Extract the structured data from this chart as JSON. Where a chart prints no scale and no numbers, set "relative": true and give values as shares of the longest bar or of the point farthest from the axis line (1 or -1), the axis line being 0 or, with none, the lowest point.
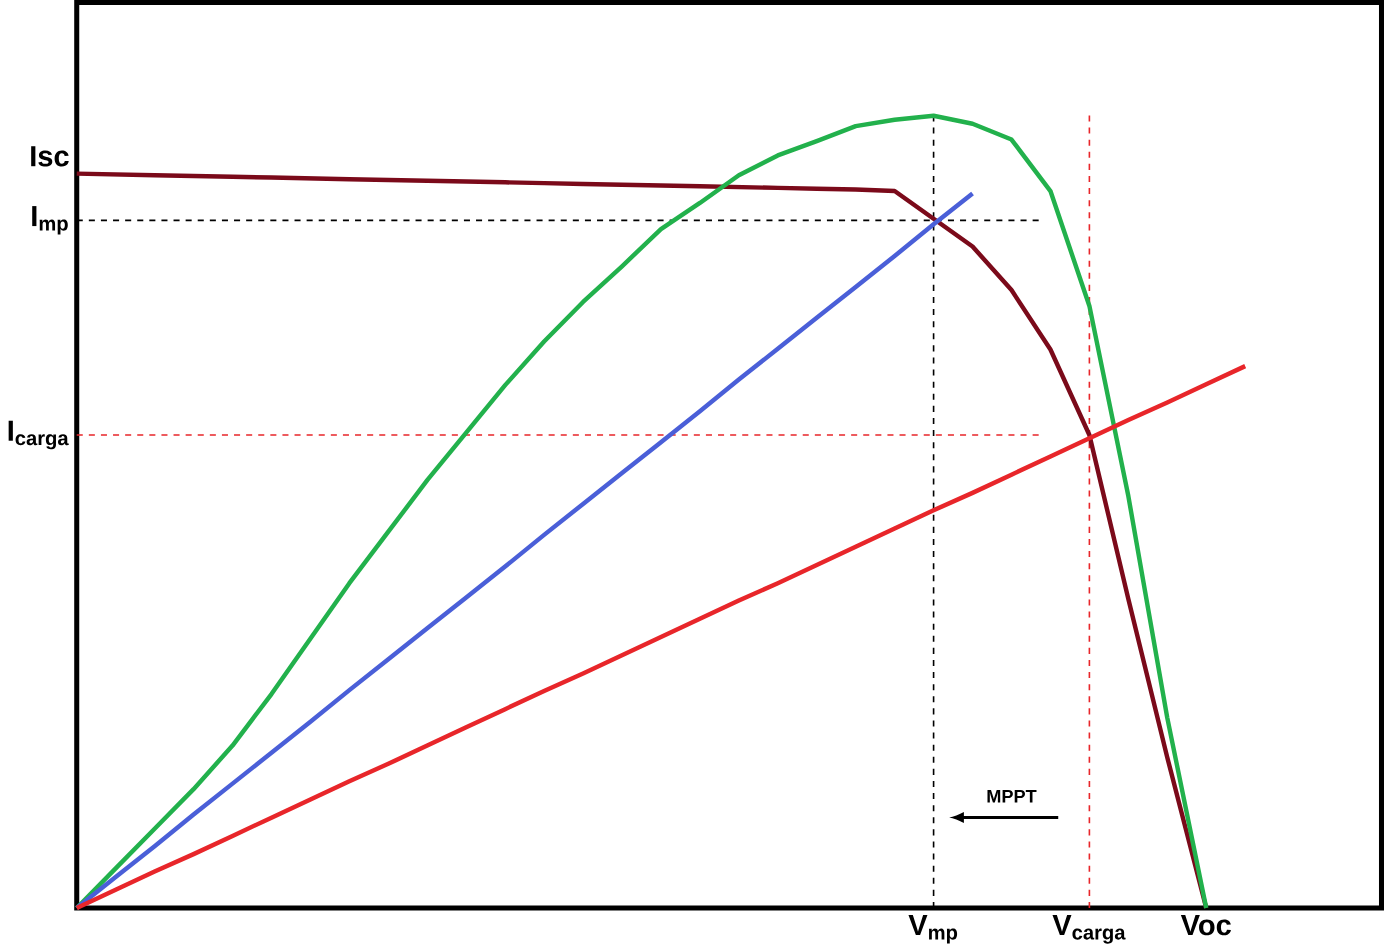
{
  "chart_data": {
    "type": "line",
    "relative": true,
    "marker": "none",
    "line_style": "solid",
    "categories": [
      null,
      null,
      null,
      null,
      null,
      null,
      null,
      null,
      null,
      null,
      null,
      null,
      null,
      null,
      null,
      null,
      null,
      null,
      null,
      null,
      null,
      null,
      "V$_{mp}$",
      null,
      null,
      null,
      "V$_{carga}$",
      null,
      null,
      "Voc",
      null
    ],
    "series": [
      {
        "color": "#7b0a1a",
        "values": [
          0.927,
          0.926,
          0.925,
          0.924,
          0.923,
          0.922,
          0.921,
          0.92,
          0.919,
          0.918,
          0.917,
          0.916,
          0.915,
          0.914,
          0.913,
          0.912,
          0.911,
          0.91,
          0.909,
          0.908,
          0.907,
          0.905,
          0.87,
          0.835,
          0.78,
          0.705,
          0.597,
          0.39,
          0.19,
          0,
          null
        ]
      },
      {
        "color": "#22b14c",
        "values": [
          0,
          0.05,
          0.1,
          0.15,
          0.205,
          0.27,
          0.34,
          0.41,
          0.475,
          0.54,
          0.6,
          0.66,
          0.715,
          0.765,
          0.81,
          0.857,
          0.89,
          0.925,
          0.95,
          0.968,
          0.987,
          0.995,
          1,
          0.99,
          0.97,
          0.905,
          0.76,
          0.52,
          0.24,
          0,
          null
        ]
      },
      {
        "color": "#4a5fd8",
        "values": [
          0,
          0.039,
          0.078,
          0.118,
          0.157,
          0.196,
          0.235,
          0.275,
          0.314,
          0.353,
          0.392,
          0.431,
          0.471,
          0.51,
          0.549,
          0.588,
          0.627,
          0.667,
          0.706,
          0.745,
          0.784,
          0.823,
          0.863,
          0.902,
          null,
          null,
          null,
          null,
          null,
          null,
          null
        ]
      },
      {
        "color": "#e8262a",
        "values": [
          0,
          0.023,
          0.046,
          0.068,
          0.091,
          0.114,
          0.137,
          0.16,
          0.182,
          0.205,
          0.228,
          0.251,
          0.274,
          0.296,
          0.319,
          0.342,
          0.365,
          0.388,
          0.41,
          0.433,
          0.456,
          0.479,
          0.502,
          0.524,
          0.547,
          0.57,
          0.593,
          0.616,
          0.638,
          0.661,
          0.684
        ]
      }
    ],
    "ref_lines": [
      {
        "axis": "x",
        "value": "V$_{mp}$",
        "color": "#000000",
        "line_style": "dashed"
      },
      {
        "axis": "y",
        "value": 0.868,
        "label": "I$_{mp}$",
        "color": "#000000",
        "line_style": "dashed"
      },
      {
        "axis": "x",
        "value": "V$_{carga}$",
        "color": "#e8262a",
        "line_style": "dashed"
      },
      {
        "axis": "y",
        "value": 0.597,
        "label": "I$_{carga}$",
        "color": "#e8262a",
        "line_style": "dashed"
      }
    ],
    "annotations": [
      "Isc",
      "MPPT"
    ]
  }
}
